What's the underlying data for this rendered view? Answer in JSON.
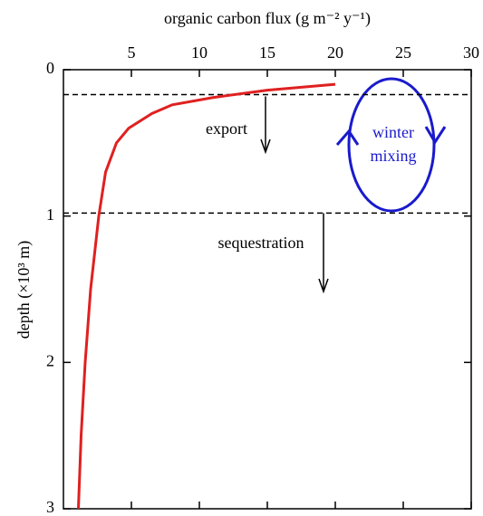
{
  "chart_data": {
    "type": "line",
    "xlabel": "organic carbon flux (g m⁻² y⁻¹)",
    "ylabel": "depth (×10³ m)",
    "xlim": [
      0,
      30
    ],
    "xticks": [
      5,
      10,
      15,
      20,
      25,
      30
    ],
    "ylim": [
      0,
      3
    ],
    "yticks": [
      0,
      1,
      2,
      3
    ],
    "y_inverted": true,
    "hlines": [
      0.17,
      0.98
    ],
    "annotations": [
      "export",
      "sequestration",
      "winter",
      "mixing"
    ],
    "series": [
      {
        "color": "#e02020",
        "x": [
          20,
          15,
          11,
          8,
          6.5,
          4.8,
          3.9,
          3.1,
          2.6,
          2.0,
          1.6,
          1.3,
          1.1
        ],
        "values": [
          0.1,
          0.14,
          0.19,
          0.24,
          0.3,
          0.4,
          0.5,
          0.7,
          1.0,
          1.5,
          2.0,
          2.5,
          3.0
        ]
      }
    ]
  }
}
